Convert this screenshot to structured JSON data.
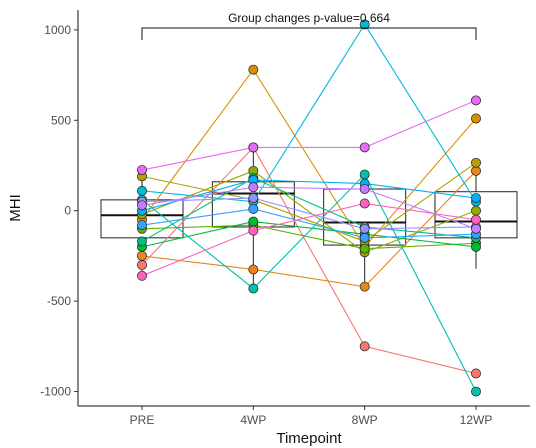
{
  "chart_data": {
    "type": "box-scatter",
    "xlabel": "Timepoint",
    "ylabel": "MHI",
    "categories": [
      "PRE",
      "4WP",
      "8WP",
      "12WP"
    ],
    "ylim": [
      -1080,
      1110
    ],
    "yticks": [
      1000,
      500,
      0,
      -500,
      -1000
    ],
    "grid": false,
    "legend": "none",
    "annotation": "Group changes p-value=0.664",
    "boxes": [
      {
        "q1": -150,
        "median": -25,
        "q3": 60,
        "whisker_low": -360,
        "whisker_high": 225
      },
      {
        "q1": -90,
        "median": 95,
        "q3": 160,
        "whisker_low": -430,
        "whisker_high": 370
      },
      {
        "q1": -190,
        "median": -65,
        "q3": 120,
        "whisker_low": -420,
        "whisker_high": 210
      },
      {
        "q1": -150,
        "median": -60,
        "q3": 105,
        "whisker_low": -320,
        "whisker_high": 270
      }
    ],
    "series": [
      {
        "color": "#F8766D",
        "values": [
          -300,
          350,
          -750,
          -900
        ]
      },
      {
        "color": "#E7861B",
        "values": [
          -250,
          -325,
          -420,
          220
        ]
      },
      {
        "color": "#D89000",
        "values": [
          -50,
          780,
          -200,
          510
        ]
      },
      {
        "color": "#B79F00",
        "values": [
          190,
          60,
          -170,
          265
        ]
      },
      {
        "color": "#93AA00",
        "values": [
          -20,
          220,
          -230,
          0
        ]
      },
      {
        "color": "#5EB300",
        "values": [
          -100,
          -80,
          -210,
          -180
        ]
      },
      {
        "color": "#00BA38",
        "values": [
          -200,
          -60,
          -130,
          -200
        ]
      },
      {
        "color": "#00BF7D",
        "values": [
          -170,
          180,
          -90,
          -150
        ]
      },
      {
        "color": "#00C0AF",
        "values": [
          60,
          -430,
          200,
          -1000
        ]
      },
      {
        "color": "#00BCD8",
        "values": [
          110,
          50,
          1030,
          50
        ]
      },
      {
        "color": "#00B0F6",
        "values": [
          0,
          170,
          150,
          70
        ]
      },
      {
        "color": "#35A2FF",
        "values": [
          -80,
          10,
          -150,
          -130
        ]
      },
      {
        "color": "#9590FF",
        "values": [
          50,
          70,
          -100,
          -90
        ]
      },
      {
        "color": "#C77CFF",
        "values": [
          30,
          130,
          120,
          -100
        ]
      },
      {
        "color": "#E76BF3",
        "values": [
          225,
          350,
          350,
          610
        ]
      },
      {
        "color": "#FF62BC",
        "values": [
          -360,
          -110,
          40,
          -50
        ]
      }
    ]
  }
}
